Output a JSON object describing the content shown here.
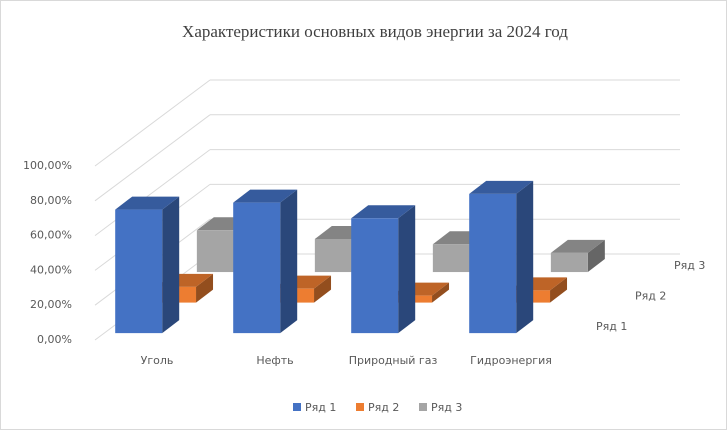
{
  "chart_data": {
    "type": "bar3d",
    "title": "Характеристики  основных видов энергии за 2024 год",
    "categories": [
      "Уголь",
      "Нефть",
      "Природный газ",
      "Гидроэнергия"
    ],
    "series": [
      {
        "name": "Ряд 1",
        "color": "#4472c4",
        "values": [
          71,
          75,
          66,
          80
        ]
      },
      {
        "name": "Ряд 2",
        "color": "#ed7d31",
        "values": [
          9,
          8,
          4,
          7
        ]
      },
      {
        "name": "Ряд 3",
        "color": "#a5a5a5",
        "values": [
          24,
          19,
          16,
          11
        ]
      }
    ],
    "ylim": [
      0,
      100
    ],
    "yticks": [
      {
        "value": 0,
        "label": "0,00%"
      },
      {
        "value": 20,
        "label": "20,00%"
      },
      {
        "value": 40,
        "label": "40,00%"
      },
      {
        "value": 60,
        "label": "60,00%"
      },
      {
        "value": 80,
        "label": "80,00%"
      },
      {
        "value": 100,
        "label": "100,00%"
      }
    ],
    "grid": true,
    "legend": "bottom"
  }
}
